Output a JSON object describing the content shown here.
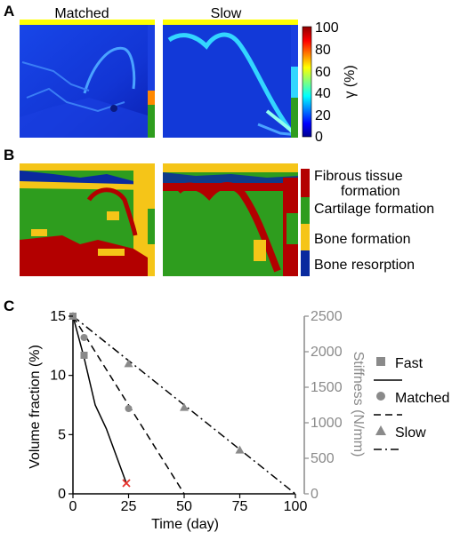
{
  "panels": [
    {
      "letter": "A",
      "titles": [
        "Matched",
        "Slow"
      ],
      "colorbar": {
        "label": "γ (%)",
        "ticks": [
          "100",
          "80",
          "60",
          "40",
          "20",
          "0"
        ]
      }
    },
    {
      "letter": "B",
      "legend": [
        {
          "label_lines": [
            "Fibrous tissue",
            "formation"
          ],
          "color": "#b30000"
        },
        {
          "label_lines": [
            "Cartilage formation"
          ],
          "color": "#2e9d1e"
        },
        {
          "label_lines": [
            "Bone formation"
          ],
          "color": "#f5c518"
        },
        {
          "label_lines": [
            "Bone resorption"
          ],
          "color": "#0a2a9e"
        }
      ]
    },
    {
      "letter": "C"
    }
  ],
  "chart_data": {
    "type": "line",
    "xlabel": "Time (day)",
    "ylabel": "Volume fraction (%)",
    "y2label": "Stiffness (N/mm)",
    "xlim": [
      0,
      100
    ],
    "ylim": [
      0,
      15
    ],
    "y2lim": [
      0,
      2500
    ],
    "x_ticks": [
      "0",
      "25",
      "50",
      "75",
      "100"
    ],
    "y_ticks": [
      "0",
      "5",
      "10",
      "15"
    ],
    "y2_ticks": [
      "0",
      "500",
      "1000",
      "1500",
      "2000",
      "2500"
    ],
    "series": [
      {
        "name": "Fast",
        "marker": "square",
        "linestyle": "solid",
        "line": {
          "x": [
            0,
            5,
            10,
            15,
            24
          ],
          "y": [
            15,
            11.5,
            7.5,
            5.5,
            0.9
          ]
        },
        "markers": {
          "x": [
            0,
            5
          ],
          "y": [
            15,
            11.7
          ]
        }
      },
      {
        "name": "Matched",
        "marker": "circle",
        "linestyle": "dashed",
        "line": {
          "x": [
            0,
            50
          ],
          "y": [
            15,
            0
          ]
        },
        "markers": {
          "x": [
            0,
            5,
            25
          ],
          "y": [
            15,
            13.2,
            7.2
          ]
        }
      },
      {
        "name": "Slow",
        "marker": "triangle",
        "linestyle": "dashdot",
        "line": {
          "x": [
            0,
            100
          ],
          "y": [
            15,
            0
          ]
        },
        "markers": {
          "x": [
            0,
            25,
            50,
            75
          ],
          "y": [
            15,
            11,
            7.3,
            3.7
          ]
        }
      }
    ],
    "failure_marker": {
      "x": 24,
      "y": 0.9,
      "color": "#e8322b"
    },
    "marker_color": "#8a8a8a"
  }
}
